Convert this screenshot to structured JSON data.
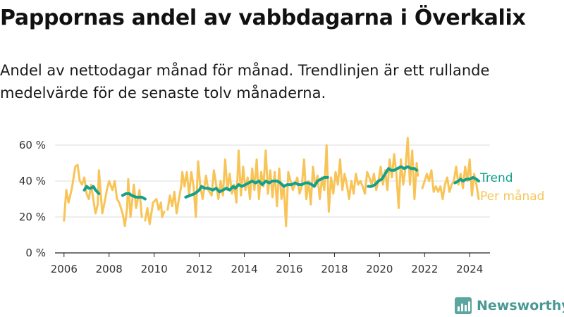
{
  "title": "Pappornas andel av vabbdagarna i Överkalix",
  "subtitle": "Andel av nettodagar månad för månad. Trendlinjen är ett rullande medelvärde för de senaste tolv månaderna.",
  "brand": "Newsworthy",
  "colors": {
    "trend": "#14a08c",
    "monthly": "#f8c457",
    "grid": "#dddddd",
    "axis": "#222222"
  },
  "chart_data": {
    "type": "line",
    "title": "Pappornas andel av vabbdagarna i Överkalix",
    "xlabel": "",
    "ylabel": "",
    "xlim": [
      2005.6,
      2024.9
    ],
    "ylim": [
      0,
      60
    ],
    "grid": "horizontal",
    "x_ticks": [
      2006,
      2008,
      2010,
      2012,
      2014,
      2016,
      2018,
      2020,
      2022,
      2024
    ],
    "x_tick_labels": [
      "2006",
      "2008",
      "2010",
      "2012",
      "2014",
      "2016",
      "2018",
      "2020",
      "2022",
      "2024"
    ],
    "y_ticks": [
      0,
      20,
      40,
      60
    ],
    "y_tick_labels": [
      "0 %",
      "20 %",
      "40 %",
      "60 %"
    ],
    "legend": "right",
    "series": [
      {
        "name": "Per månad",
        "color": "#f8c457",
        "segments": [
          [
            [
              2006.0,
              18
            ],
            [
              2006.1,
              35
            ],
            [
              2006.2,
              28
            ],
            [
              2006.35,
              36
            ],
            [
              2006.5,
              48
            ],
            [
              2006.6,
              49
            ],
            [
              2006.7,
              40
            ],
            [
              2006.8,
              38
            ],
            [
              2006.9,
              42
            ],
            [
              2007.0,
              33
            ],
            [
              2007.1,
              30
            ],
            [
              2007.2,
              38
            ],
            [
              2007.3,
              30
            ],
            [
              2007.4,
              22
            ],
            [
              2007.5,
              27
            ],
            [
              2007.55,
              46
            ],
            [
              2007.7,
              22
            ],
            [
              2007.8,
              28
            ],
            [
              2007.9,
              35
            ],
            [
              2008.0,
              40
            ],
            [
              2008.15,
              35
            ],
            [
              2008.25,
              40
            ],
            [
              2008.35,
              30
            ],
            [
              2008.45,
              28
            ],
            [
              2008.6,
              22
            ],
            [
              2008.7,
              15
            ],
            [
              2008.8,
              25
            ],
            [
              2008.85,
              41
            ],
            [
              2008.95,
              20
            ],
            [
              2009.1,
              38
            ],
            [
              2009.2,
              25
            ],
            [
              2009.35,
              35
            ],
            [
              2009.45,
              20
            ]
          ],
          [
            [
              2009.6,
              18
            ],
            [
              2009.7,
              25
            ],
            [
              2009.8,
              16
            ],
            [
              2009.95,
              28
            ],
            [
              2010.1,
              30
            ],
            [
              2010.2,
              24
            ],
            [
              2010.3,
              28
            ],
            [
              2010.35,
              20
            ],
            [
              2010.45,
              23
            ]
          ],
          [
            [
              2010.6,
              24
            ],
            [
              2010.7,
              32
            ],
            [
              2010.8,
              26
            ],
            [
              2010.9,
              34
            ],
            [
              2011.0,
              22
            ],
            [
              2011.1,
              30
            ],
            [
              2011.2,
              37
            ],
            [
              2011.25,
              45
            ],
            [
              2011.35,
              37
            ],
            [
              2011.45,
              45
            ],
            [
              2011.55,
              32
            ],
            [
              2011.65,
              45
            ],
            [
              2011.75,
              37
            ],
            [
              2011.85,
              20
            ],
            [
              2011.95,
              51
            ],
            [
              2012.05,
              37
            ],
            [
              2012.15,
              30
            ],
            [
              2012.3,
              43
            ],
            [
              2012.4,
              35
            ],
            [
              2012.55,
              32
            ],
            [
              2012.65,
              46
            ],
            [
              2012.75,
              38
            ],
            [
              2012.85,
              30
            ],
            [
              2012.95,
              40
            ],
            [
              2013.05,
              32
            ],
            [
              2013.15,
              52
            ],
            [
              2013.25,
              35
            ],
            [
              2013.35,
              44
            ],
            [
              2013.45,
              33
            ],
            [
              2013.55,
              38
            ],
            [
              2013.65,
              28
            ],
            [
              2013.75,
              57
            ],
            [
              2013.85,
              32
            ],
            [
              2013.95,
              48
            ],
            [
              2014.05,
              35
            ],
            [
              2014.15,
              42
            ],
            [
              2014.25,
              30
            ],
            [
              2014.35,
              47
            ],
            [
              2014.45,
              35
            ],
            [
              2014.55,
              52
            ],
            [
              2014.65,
              30
            ],
            [
              2014.75,
              45
            ],
            [
              2014.85,
              37
            ],
            [
              2014.95,
              57
            ],
            [
              2015.05,
              33
            ],
            [
              2015.15,
              46
            ],
            [
              2015.25,
              31
            ],
            [
              2015.35,
              45
            ],
            [
              2015.45,
              26
            ],
            [
              2015.55,
              47
            ],
            [
              2015.65,
              30
            ],
            [
              2015.75,
              38
            ],
            [
              2015.85,
              15
            ],
            [
              2015.95,
              45
            ],
            [
              2016.05,
              40
            ],
            [
              2016.15,
              35
            ],
            [
              2016.25,
              38
            ],
            [
              2016.35,
              42
            ],
            [
              2016.45,
              33
            ],
            [
              2016.55,
              37
            ],
            [
              2016.65,
              52
            ],
            [
              2016.75,
              30
            ],
            [
              2016.85,
              40
            ],
            [
              2016.95,
              27
            ],
            [
              2017.05,
              48
            ],
            [
              2017.15,
              37
            ],
            [
              2017.25,
              43
            ],
            [
              2017.35,
              30
            ],
            [
              2017.45,
              42
            ],
            [
              2017.55,
              35
            ],
            [
              2017.65,
              60
            ],
            [
              2017.75,
              23
            ],
            [
              2017.85,
              42
            ],
            [
              2017.95,
              33
            ],
            [
              2018.05,
              45
            ],
            [
              2018.15,
              38
            ],
            [
              2018.25,
              52
            ],
            [
              2018.35,
              35
            ],
            [
              2018.45,
              44
            ],
            [
              2018.55,
              38
            ],
            [
              2018.65,
              30
            ],
            [
              2018.75,
              40
            ],
            [
              2018.85,
              33
            ],
            [
              2018.95,
              44
            ],
            [
              2019.05,
              38
            ],
            [
              2019.15,
              40
            ],
            [
              2019.25,
              37
            ],
            [
              2019.35,
              33
            ],
            [
              2019.45,
              45
            ],
            [
              2019.55,
              42
            ],
            [
              2019.65,
              38
            ],
            [
              2019.75,
              44
            ],
            [
              2019.85,
              35
            ],
            [
              2019.95,
              40
            ],
            [
              2020.05,
              48
            ],
            [
              2020.15,
              38
            ],
            [
              2020.25,
              46
            ],
            [
              2020.35,
              35
            ],
            [
              2020.45,
              52
            ],
            [
              2020.55,
              42
            ],
            [
              2020.65,
              55
            ],
            [
              2020.75,
              44
            ],
            [
              2020.85,
              25
            ],
            [
              2020.95,
              52
            ],
            [
              2021.05,
              38
            ],
            [
              2021.15,
              47
            ],
            [
              2021.25,
              64
            ],
            [
              2021.35,
              38
            ],
            [
              2021.45,
              57
            ],
            [
              2021.55,
              30
            ],
            [
              2021.65,
              50
            ],
            [
              2021.7,
              43
            ]
          ],
          [
            [
              2021.9,
              36
            ],
            [
              2022.0,
              40
            ],
            [
              2022.1,
              44
            ],
            [
              2022.2,
              40
            ],
            [
              2022.3,
              46
            ],
            [
              2022.4,
              34
            ],
            [
              2022.5,
              37
            ],
            [
              2022.6,
              34
            ],
            [
              2022.7,
              37
            ],
            [
              2022.8,
              30
            ],
            [
              2022.9,
              38
            ],
            [
              2023.0,
              42
            ],
            [
              2023.1,
              34
            ],
            [
              2023.2,
              38
            ],
            [
              2023.3,
              40
            ],
            [
              2023.4,
              48
            ],
            [
              2023.5,
              38
            ],
            [
              2023.6,
              44
            ],
            [
              2023.7,
              36
            ],
            [
              2023.8,
              48
            ],
            [
              2023.9,
              40
            ],
            [
              2024.0,
              52
            ],
            [
              2024.1,
              32
            ],
            [
              2024.2,
              44
            ],
            [
              2024.3,
              38
            ],
            [
              2024.4,
              30
            ]
          ]
        ]
      },
      {
        "name": "Trend",
        "color": "#14a08c",
        "segments": [
          [
            [
              2006.9,
              35
            ],
            [
              2007.0,
              37
            ],
            [
              2007.1,
              36
            ],
            [
              2007.2,
              36
            ],
            [
              2007.3,
              37
            ],
            [
              2007.4,
              35
            ],
            [
              2007.55,
              33
            ]
          ],
          [
            [
              2008.6,
              32
            ],
            [
              2008.75,
              33
            ],
            [
              2008.9,
              33
            ],
            [
              2009.0,
              32
            ],
            [
              2009.2,
              31
            ],
            [
              2009.45,
              31
            ],
            [
              2009.6,
              30
            ]
          ],
          [
            [
              2011.4,
              31
            ],
            [
              2011.6,
              32
            ],
            [
              2011.8,
              33
            ],
            [
              2012.0,
              35
            ],
            [
              2012.1,
              37
            ],
            [
              2012.25,
              36
            ],
            [
              2012.4,
              36
            ],
            [
              2012.6,
              35
            ],
            [
              2012.75,
              36
            ],
            [
              2012.9,
              34
            ],
            [
              2013.05,
              35
            ],
            [
              2013.2,
              36
            ],
            [
              2013.35,
              35
            ],
            [
              2013.5,
              37
            ],
            [
              2013.6,
              36
            ],
            [
              2013.75,
              38
            ],
            [
              2013.9,
              37
            ],
            [
              2014.05,
              38
            ],
            [
              2014.2,
              39
            ],
            [
              2014.35,
              40
            ],
            [
              2014.5,
              39
            ],
            [
              2014.65,
              40
            ],
            [
              2014.8,
              38
            ],
            [
              2014.95,
              40
            ],
            [
              2015.1,
              39
            ],
            [
              2015.25,
              40
            ],
            [
              2015.45,
              40
            ],
            [
              2015.6,
              39
            ],
            [
              2015.75,
              37
            ],
            [
              2015.9,
              38
            ],
            [
              2016.1,
              38
            ],
            [
              2016.25,
              39
            ],
            [
              2016.4,
              38
            ],
            [
              2016.55,
              38
            ],
            [
              2016.7,
              39
            ],
            [
              2016.85,
              39
            ],
            [
              2017.0,
              38
            ],
            [
              2017.1,
              37
            ],
            [
              2017.25,
              40
            ],
            [
              2017.4,
              41
            ],
            [
              2017.55,
              42
            ],
            [
              2017.7,
              42
            ]
          ],
          [
            [
              2019.5,
              37
            ],
            [
              2019.65,
              37
            ],
            [
              2019.8,
              38
            ],
            [
              2019.95,
              40
            ],
            [
              2020.1,
              41
            ],
            [
              2020.2,
              43
            ],
            [
              2020.3,
              45
            ],
            [
              2020.4,
              47
            ],
            [
              2020.5,
              46
            ],
            [
              2020.65,
              46
            ],
            [
              2020.8,
              47
            ],
            [
              2020.95,
              48
            ],
            [
              2021.1,
              47
            ],
            [
              2021.25,
              48
            ],
            [
              2021.4,
              47
            ],
            [
              2021.55,
              47
            ],
            [
              2021.65,
              46
            ]
          ],
          [
            [
              2023.35,
              39
            ],
            [
              2023.5,
              40
            ],
            [
              2023.6,
              41
            ],
            [
              2023.7,
              40
            ],
            [
              2023.85,
              41
            ],
            [
              2024.0,
              41
            ],
            [
              2024.15,
              42
            ],
            [
              2024.3,
              41
            ],
            [
              2024.4,
              40
            ]
          ]
        ]
      }
    ]
  }
}
